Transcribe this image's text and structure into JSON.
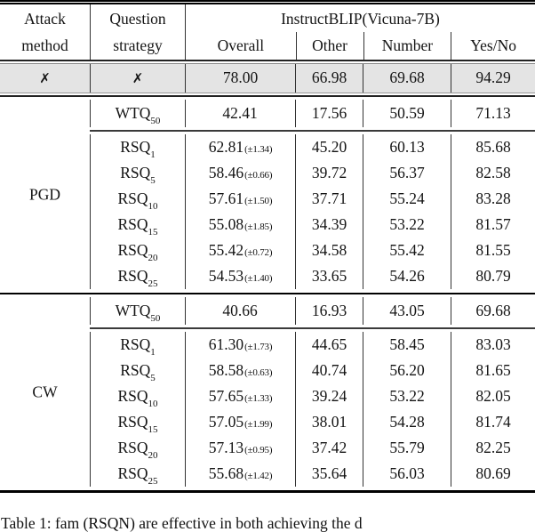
{
  "header": {
    "attack_line1": "Attack",
    "attack_line2": "method",
    "question_line1": "Question",
    "question_line2": "strategy",
    "model_span": "InstructBLIP(Vicuna-7B)",
    "sub_columns": [
      "Overall",
      "Other",
      "Number",
      "Yes/No"
    ]
  },
  "baseline_row": {
    "attack": "✗",
    "strategy": "✗",
    "overall": "78.00",
    "other": "66.98",
    "number": "69.68",
    "yesno": "94.29"
  },
  "sections": [
    {
      "attack": "PGD",
      "wtq": {
        "label_base": "WTQ",
        "label_sub": "50",
        "overall": "42.41",
        "pm": "",
        "other": "17.56",
        "number": "50.59",
        "yesno": "71.13"
      },
      "rows": [
        {
          "label_base": "RSQ",
          "label_sub": "1",
          "overall": "62.81",
          "pm": "(±1.34)",
          "other": "45.20",
          "number": "60.13",
          "yesno": "85.68"
        },
        {
          "label_base": "RSQ",
          "label_sub": "5",
          "overall": "58.46",
          "pm": "(±0.66)",
          "other": "39.72",
          "number": "56.37",
          "yesno": "82.58"
        },
        {
          "label_base": "RSQ",
          "label_sub": "10",
          "overall": "57.61",
          "pm": "(±1.50)",
          "other": "37.71",
          "number": "55.24",
          "yesno": "83.28"
        },
        {
          "label_base": "RSQ",
          "label_sub": "15",
          "overall": "55.08",
          "pm": "(±1.85)",
          "other": "34.39",
          "number": "53.22",
          "yesno": "81.57"
        },
        {
          "label_base": "RSQ",
          "label_sub": "20",
          "overall": "55.42",
          "pm": "(±0.72)",
          "other": "34.58",
          "number": "55.42",
          "yesno": "81.55"
        },
        {
          "label_base": "RSQ",
          "label_sub": "25",
          "overall": "54.53",
          "pm": "(±1.40)",
          "other": "33.65",
          "number": "54.26",
          "yesno": "80.79"
        }
      ]
    },
    {
      "attack": "CW",
      "wtq": {
        "label_base": "WTQ",
        "label_sub": "50",
        "overall": "40.66",
        "pm": "",
        "other": "16.93",
        "number": "43.05",
        "yesno": "69.68"
      },
      "rows": [
        {
          "label_base": "RSQ",
          "label_sub": "1",
          "overall": "61.30",
          "pm": "(±1.73)",
          "other": "44.65",
          "number": "58.45",
          "yesno": "83.03"
        },
        {
          "label_base": "RSQ",
          "label_sub": "5",
          "overall": "58.58",
          "pm": "(±0.63)",
          "other": "40.74",
          "number": "56.20",
          "yesno": "81.65"
        },
        {
          "label_base": "RSQ",
          "label_sub": "10",
          "overall": "57.65",
          "pm": "(±1.33)",
          "other": "39.24",
          "number": "53.22",
          "yesno": "82.05"
        },
        {
          "label_base": "RSQ",
          "label_sub": "15",
          "overall": "57.05",
          "pm": "(±1.99)",
          "other": "38.01",
          "number": "54.28",
          "yesno": "81.74"
        },
        {
          "label_base": "RSQ",
          "label_sub": "20",
          "overall": "57.13",
          "pm": "(±0.95)",
          "other": "37.42",
          "number": "55.79",
          "yesno": "82.25"
        },
        {
          "label_base": "RSQ",
          "label_sub": "25",
          "overall": "55.68",
          "pm": "(±1.42)",
          "other": "35.64",
          "number": "56.03",
          "yesno": "80.69"
        }
      ]
    }
  ],
  "caption_partial": "Table 1: fam (RSQN) are effective in both achieving the d"
}
